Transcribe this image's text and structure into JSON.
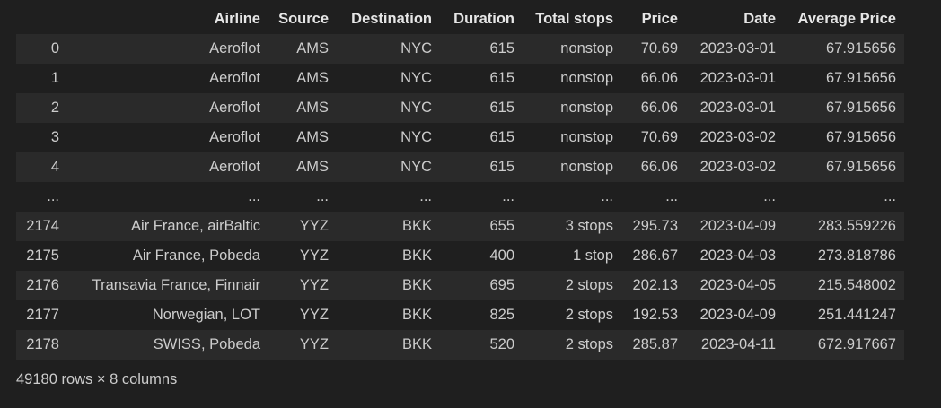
{
  "table": {
    "columns": [
      "",
      "Airline",
      "Source",
      "Destination",
      "Duration",
      "Total stops",
      "Price",
      "Date",
      "Average Price"
    ],
    "rows": [
      [
        "0",
        "Aeroflot",
        "AMS",
        "NYC",
        "615",
        "nonstop",
        "70.69",
        "2023-03-01",
        "67.915656"
      ],
      [
        "1",
        "Aeroflot",
        "AMS",
        "NYC",
        "615",
        "nonstop",
        "66.06",
        "2023-03-01",
        "67.915656"
      ],
      [
        "2",
        "Aeroflot",
        "AMS",
        "NYC",
        "615",
        "nonstop",
        "66.06",
        "2023-03-01",
        "67.915656"
      ],
      [
        "3",
        "Aeroflot",
        "AMS",
        "NYC",
        "615",
        "nonstop",
        "70.69",
        "2023-03-02",
        "67.915656"
      ],
      [
        "4",
        "Aeroflot",
        "AMS",
        "NYC",
        "615",
        "nonstop",
        "66.06",
        "2023-03-02",
        "67.915656"
      ],
      [
        "...",
        "...",
        "...",
        "...",
        "...",
        "...",
        "...",
        "...",
        "..."
      ],
      [
        "2174",
        "Air France, airBaltic",
        "YYZ",
        "BKK",
        "655",
        "3 stops",
        "295.73",
        "2023-04-09",
        "283.559226"
      ],
      [
        "2175",
        "Air France, Pobeda",
        "YYZ",
        "BKK",
        "400",
        "1 stop",
        "286.67",
        "2023-04-03",
        "273.818786"
      ],
      [
        "2176",
        "Transavia France, Finnair",
        "YYZ",
        "BKK",
        "695",
        "2 stops",
        "202.13",
        "2023-04-05",
        "215.548002"
      ],
      [
        "2177",
        "Norwegian, LOT",
        "YYZ",
        "BKK",
        "825",
        "2 stops",
        "192.53",
        "2023-04-09",
        "251.441247"
      ],
      [
        "2178",
        "SWISS, Pobeda",
        "YYZ",
        "BKK",
        "520",
        "2 stops",
        "285.87",
        "2023-04-11",
        "672.917667"
      ]
    ]
  },
  "shape_text": "49180 rows × 8 columns"
}
